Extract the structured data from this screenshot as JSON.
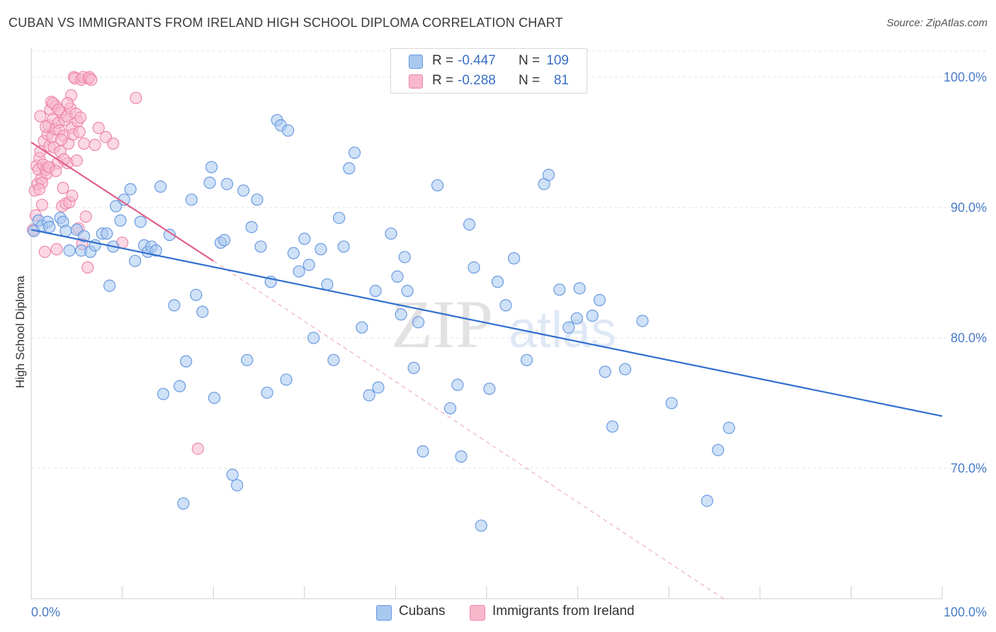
{
  "title": "CUBAN VS IMMIGRANTS FROM IRELAND HIGH SCHOOL DIPLOMA CORRELATION CHART",
  "source": "Source: ZipAtlas.com",
  "watermark": {
    "zip": "ZIP",
    "atlas": "atlas"
  },
  "legend": {
    "rows": [
      {
        "r_label": "R =",
        "r_value": "-0.447",
        "n_label": "N =",
        "n_value": "109"
      },
      {
        "r_label": "R =",
        "r_value": "-0.288",
        "n_label": "N =",
        "n_value": "81"
      }
    ]
  },
  "bottom_legend": {
    "series1": "Cubans",
    "series2": "Immigrants from Ireland"
  },
  "colors": {
    "cubans_fill": "#a8c8f0",
    "cubans_stroke": "#6a9ae0",
    "cubans_line": "#2f6fcf",
    "ireland_fill": "#f8b8cc",
    "ireland_stroke": "#ee88a8",
    "ireland_line": "#e0608c",
    "grid": "#e4e4e4",
    "axis_text": "#4a7cc9"
  },
  "chart_data": {
    "type": "scatter",
    "title": "CUBAN VS IMMIGRANTS FROM IRELAND HIGH SCHOOL DIPLOMA CORRELATION CHART",
    "xlabel": "",
    "ylabel": "High School Diploma",
    "xlim": [
      0,
      100
    ],
    "ylim": [
      60,
      102
    ],
    "x_tick_labels": [
      "0.0%",
      "100.0%"
    ],
    "y_ticks": [
      70,
      80,
      90,
      100
    ],
    "y_tick_labels": [
      "70.0%",
      "80.0%",
      "90.0%",
      "100.0%"
    ],
    "grid": true,
    "legend_position": "top-center",
    "series": [
      {
        "name": "Cubans",
        "r": -0.447,
        "n": 109,
        "trend": {
          "x": [
            0,
            100
          ],
          "y": [
            88.3,
            74.0
          ]
        },
        "points": [
          [
            0.3,
            88.2
          ],
          [
            0.8,
            89.0
          ],
          [
            1.2,
            88.6
          ],
          [
            1.8,
            88.9
          ],
          [
            2.0,
            88.5
          ],
          [
            3.2,
            89.2
          ],
          [
            3.5,
            88.9
          ],
          [
            3.8,
            88.2
          ],
          [
            4.2,
            86.7
          ],
          [
            5.0,
            88.3
          ],
          [
            5.5,
            86.7
          ],
          [
            5.8,
            87.8
          ],
          [
            6.5,
            86.6
          ],
          [
            7.0,
            87.1
          ],
          [
            7.8,
            88.0
          ],
          [
            8.3,
            88.0
          ],
          [
            8.6,
            84.0
          ],
          [
            9.0,
            87.0
          ],
          [
            9.3,
            90.1
          ],
          [
            9.8,
            89.0
          ],
          [
            10.2,
            90.6
          ],
          [
            10.9,
            91.4
          ],
          [
            11.4,
            85.9
          ],
          [
            12.0,
            88.9
          ],
          [
            12.4,
            87.1
          ],
          [
            12.8,
            86.6
          ],
          [
            13.2,
            87.0
          ],
          [
            13.7,
            86.7
          ],
          [
            14.2,
            91.6
          ],
          [
            14.5,
            75.7
          ],
          [
            15.2,
            87.9
          ],
          [
            15.7,
            82.5
          ],
          [
            16.3,
            76.3
          ],
          [
            16.7,
            67.3
          ],
          [
            17.0,
            78.2
          ],
          [
            17.6,
            90.6
          ],
          [
            18.1,
            83.3
          ],
          [
            18.8,
            82.0
          ],
          [
            19.6,
            91.9
          ],
          [
            19.8,
            93.1
          ],
          [
            20.1,
            75.4
          ],
          [
            20.8,
            87.3
          ],
          [
            21.2,
            87.5
          ],
          [
            21.5,
            91.8
          ],
          [
            22.1,
            69.5
          ],
          [
            22.6,
            68.7
          ],
          [
            23.3,
            91.3
          ],
          [
            23.7,
            78.3
          ],
          [
            24.2,
            88.5
          ],
          [
            24.8,
            90.6
          ],
          [
            25.2,
            87.0
          ],
          [
            25.9,
            75.8
          ],
          [
            26.3,
            84.3
          ],
          [
            27.0,
            96.7
          ],
          [
            27.4,
            96.3
          ],
          [
            28.0,
            76.8
          ],
          [
            28.2,
            95.9
          ],
          [
            28.8,
            86.5
          ],
          [
            29.4,
            85.1
          ],
          [
            30.0,
            87.6
          ],
          [
            30.5,
            85.6
          ],
          [
            31.0,
            80.0
          ],
          [
            31.8,
            86.8
          ],
          [
            32.5,
            84.1
          ],
          [
            33.2,
            78.3
          ],
          [
            33.8,
            89.2
          ],
          [
            34.3,
            87.0
          ],
          [
            34.9,
            93.0
          ],
          [
            35.5,
            94.2
          ],
          [
            36.3,
            80.8
          ],
          [
            37.1,
            75.6
          ],
          [
            37.8,
            83.6
          ],
          [
            38.1,
            76.2
          ],
          [
            39.5,
            88.0
          ],
          [
            40.2,
            84.7
          ],
          [
            40.6,
            81.8
          ],
          [
            41.0,
            86.2
          ],
          [
            41.3,
            83.6
          ],
          [
            42.0,
            77.7
          ],
          [
            42.5,
            81.2
          ],
          [
            43.0,
            71.3
          ],
          [
            44.6,
            91.7
          ],
          [
            46.0,
            74.6
          ],
          [
            46.8,
            76.4
          ],
          [
            47.2,
            70.9
          ],
          [
            48.1,
            88.7
          ],
          [
            48.6,
            85.4
          ],
          [
            49.4,
            65.6
          ],
          [
            50.3,
            76.1
          ],
          [
            51.2,
            84.3
          ],
          [
            52.1,
            82.5
          ],
          [
            53.0,
            86.1
          ],
          [
            54.4,
            78.3
          ],
          [
            56.3,
            91.8
          ],
          [
            56.8,
            92.5
          ],
          [
            58.0,
            83.7
          ],
          [
            59.0,
            80.8
          ],
          [
            59.9,
            81.5
          ],
          [
            60.2,
            83.8
          ],
          [
            61.6,
            81.7
          ],
          [
            62.4,
            82.9
          ],
          [
            63.0,
            77.4
          ],
          [
            63.8,
            73.2
          ],
          [
            65.2,
            77.6
          ],
          [
            67.1,
            81.3
          ],
          [
            70.3,
            75.0
          ],
          [
            74.2,
            67.5
          ],
          [
            75.4,
            71.4
          ],
          [
            76.6,
            73.1
          ]
        ]
      },
      {
        "name": "Immigrants from Ireland",
        "r": -0.288,
        "n": 81,
        "trend": {
          "x": [
            0,
            20
          ],
          "y": [
            95.0,
            85.9
          ]
        },
        "trend_extended": {
          "x": [
            20,
            76
          ],
          "y": [
            85.9,
            60.0
          ]
        },
        "points": [
          [
            0.2,
            88.3
          ],
          [
            0.4,
            91.3
          ],
          [
            0.5,
            89.4
          ],
          [
            0.6,
            93.2
          ],
          [
            0.7,
            91.8
          ],
          [
            0.8,
            92.9
          ],
          [
            0.9,
            93.8
          ],
          [
            1.0,
            94.3
          ],
          [
            1.1,
            92.2
          ],
          [
            1.2,
            90.2
          ],
          [
            1.3,
            93.3
          ],
          [
            1.4,
            95.1
          ],
          [
            1.5,
            86.6
          ],
          [
            1.6,
            92.9
          ],
          [
            1.7,
            92.6
          ],
          [
            1.8,
            95.6
          ],
          [
            1.9,
            96.3
          ],
          [
            2.0,
            94.7
          ],
          [
            2.1,
            97.5
          ],
          [
            2.2,
            98.1
          ],
          [
            2.3,
            95.4
          ],
          [
            2.4,
            96.8
          ],
          [
            2.5,
            94.6
          ],
          [
            2.6,
            96.0
          ],
          [
            2.7,
            97.8
          ],
          [
            2.8,
            86.8
          ],
          [
            2.9,
            93.4
          ],
          [
            3.0,
            96.5
          ],
          [
            3.1,
            95.9
          ],
          [
            3.2,
            94.3
          ],
          [
            3.3,
            97.3
          ],
          [
            3.4,
            90.1
          ],
          [
            3.5,
            91.5
          ],
          [
            3.6,
            95.5
          ],
          [
            3.7,
            96.7
          ],
          [
            3.8,
            90.3
          ],
          [
            3.9,
            97.0
          ],
          [
            4.0,
            93.4
          ],
          [
            4.1,
            94.9
          ],
          [
            4.2,
            90.4
          ],
          [
            4.3,
            97.6
          ],
          [
            4.4,
            98.6
          ],
          [
            4.5,
            96.1
          ],
          [
            4.6,
            95.6
          ],
          [
            4.7,
            100.0
          ],
          [
            4.8,
            99.9
          ],
          [
            4.9,
            97.2
          ],
          [
            5.0,
            93.6
          ],
          [
            5.1,
            96.6
          ],
          [
            5.2,
            88.4
          ],
          [
            5.3,
            95.8
          ],
          [
            5.4,
            96.9
          ],
          [
            5.5,
            99.8
          ],
          [
            5.6,
            87.2
          ],
          [
            5.7,
            100.0
          ],
          [
            5.8,
            94.9
          ],
          [
            6.0,
            89.3
          ],
          [
            6.2,
            85.4
          ],
          [
            6.3,
            99.9
          ],
          [
            6.4,
            100.0
          ],
          [
            6.6,
            99.8
          ],
          [
            7.0,
            94.8
          ],
          [
            7.4,
            96.1
          ],
          [
            8.2,
            95.4
          ],
          [
            9.0,
            94.9
          ],
          [
            10.0,
            87.3
          ],
          [
            11.5,
            98.4
          ],
          [
            18.3,
            71.5
          ],
          [
            1.0,
            97.0
          ],
          [
            1.6,
            96.2
          ],
          [
            2.0,
            93.1
          ],
          [
            2.4,
            98.0
          ],
          [
            3.0,
            97.5
          ],
          [
            3.6,
            93.7
          ],
          [
            4.0,
            98.0
          ],
          [
            4.5,
            90.9
          ],
          [
            1.2,
            91.9
          ],
          [
            1.9,
            93.1
          ],
          [
            2.7,
            92.8
          ],
          [
            3.3,
            95.2
          ],
          [
            0.9,
            91.4
          ]
        ]
      }
    ]
  }
}
